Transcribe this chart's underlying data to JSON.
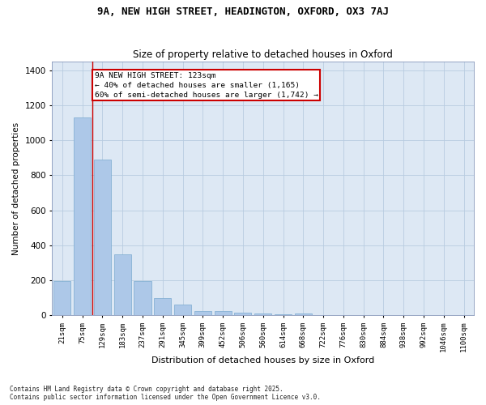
{
  "title_line1": "9A, NEW HIGH STREET, HEADINGTON, OXFORD, OX3 7AJ",
  "title_line2": "Size of property relative to detached houses in Oxford",
  "xlabel": "Distribution of detached houses by size in Oxford",
  "ylabel": "Number of detached properties",
  "bar_color": "#adc8e8",
  "bar_edge_color": "#7aaad0",
  "background_color": "#dde8f4",
  "fig_color": "#ffffff",
  "grid_color": "#b8cce0",
  "annotation_line_color": "#cc0000",
  "categories": [
    "21sqm",
    "75sqm",
    "129sqm",
    "183sqm",
    "237sqm",
    "291sqm",
    "345sqm",
    "399sqm",
    "452sqm",
    "506sqm",
    "560sqm",
    "614sqm",
    "668sqm",
    "722sqm",
    "776sqm",
    "830sqm",
    "884sqm",
    "938sqm",
    "992sqm",
    "1046sqm",
    "1100sqm"
  ],
  "values": [
    195,
    1130,
    890,
    350,
    195,
    100,
    60,
    25,
    22,
    15,
    10,
    5,
    10,
    0,
    0,
    0,
    0,
    0,
    0,
    0,
    0
  ],
  "ylim": [
    0,
    1450
  ],
  "yticks": [
    0,
    200,
    400,
    600,
    800,
    1000,
    1200,
    1400
  ],
  "redline_x": 1.5,
  "annotation_text_line1": "9A NEW HIGH STREET: 123sqm",
  "annotation_text_line2": "← 40% of detached houses are smaller (1,165)",
  "annotation_text_line3": "60% of semi-detached houses are larger (1,742) →",
  "footer_line1": "Contains HM Land Registry data © Crown copyright and database right 2025.",
  "footer_line2": "Contains public sector information licensed under the Open Government Licence v3.0."
}
